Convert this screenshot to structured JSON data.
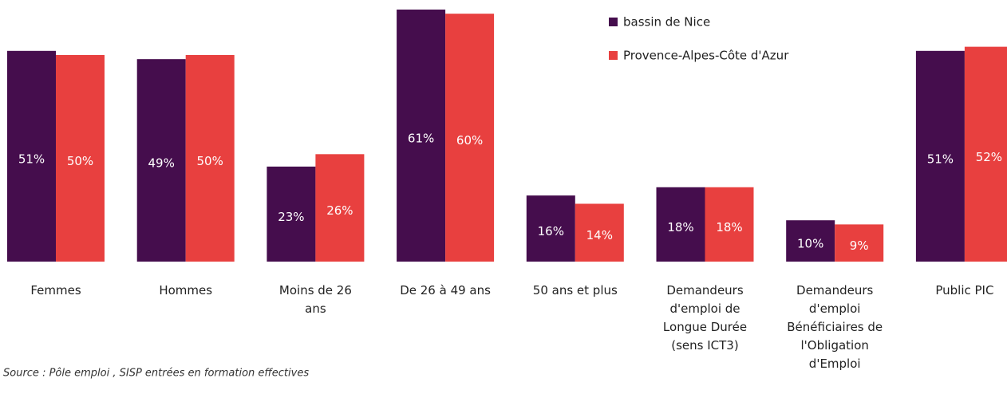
{
  "chart_data": {
    "type": "bar",
    "categories": [
      "Femmes",
      "Hommes",
      "Moins de 26\nans",
      "De 26 à 49 ans",
      "50 ans et plus",
      "Demandeurs\nd'emploi de\nLongue Durée\n(sens ICT3)",
      "Demandeurs\nd'emploi\nBénéficiaires de\nl'Obligation\nd'Emploi",
      "Public PIC"
    ],
    "series": [
      {
        "name": "bassin de Nice",
        "color": "#450d4d",
        "values": [
          51,
          49,
          23,
          61,
          16,
          18,
          10,
          51
        ],
        "value_labels": [
          "51%",
          "49%",
          "23%",
          "61%",
          "16%",
          "18%",
          "10%",
          "51%"
        ]
      },
      {
        "name": "Provence-Alpes-Côte d'Azur",
        "color": "#e8403f",
        "values": [
          50,
          50,
          26,
          60,
          14,
          18,
          9,
          52
        ],
        "value_labels": [
          "50%",
          "50%",
          "26%",
          "60%",
          "14%",
          "18%",
          "9%",
          "52%"
        ]
      }
    ],
    "legend": "top-right",
    "source": "Source : Pôle emploi , SISP entrées en formation effectives"
  }
}
